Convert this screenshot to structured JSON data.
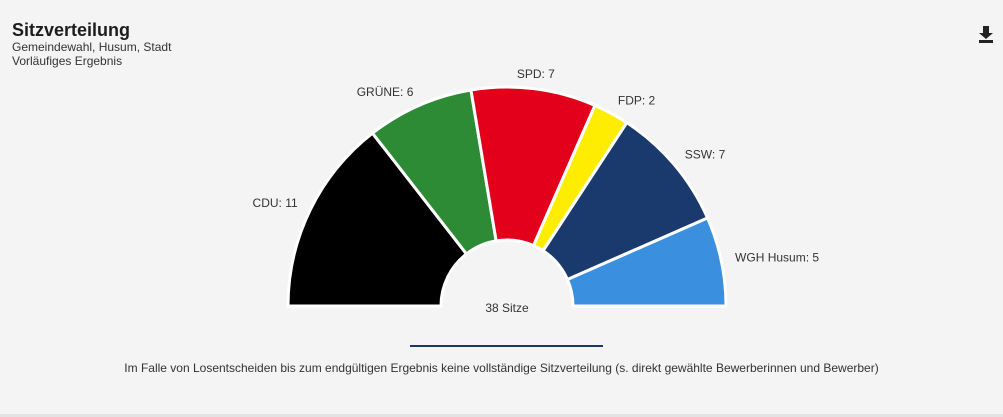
{
  "header": {
    "title": "Sitzverteilung",
    "subtitle_1": "Gemeindewahl, Husum, Stadt",
    "subtitle_2": "Vorläufiges Ergebnis",
    "download_icon": "download-icon"
  },
  "chart_data": {
    "type": "pie",
    "variant": "parliament-half-donut",
    "center_label": "38 Sitze",
    "total": 38,
    "series": [
      {
        "name": "CDU",
        "value": 11,
        "label": "CDU: 11",
        "color": "#000000"
      },
      {
        "name": "GRÜNE",
        "value": 6,
        "label": "GRÜNE: 6",
        "color": "#2e8b35"
      },
      {
        "name": "SPD",
        "value": 7,
        "label": "SPD: 7",
        "color": "#e2001a"
      },
      {
        "name": "FDP",
        "value": 2,
        "label": "FDP: 2",
        "color": "#ffed00"
      },
      {
        "name": "SSW",
        "value": 7,
        "label": "SSW: 7",
        "color": "#1a3a6e"
      },
      {
        "name": "WGH Husum",
        "value": 5,
        "label": "WGH Husum: 5",
        "color": "#3b8fdf"
      }
    ]
  },
  "footnote": "Im Falle von Losentscheiden bis zum endgültigen Ergebnis keine vollständige Sitzverteilung (s. direkt gewählte Bewerberinnen und Bewerber)"
}
